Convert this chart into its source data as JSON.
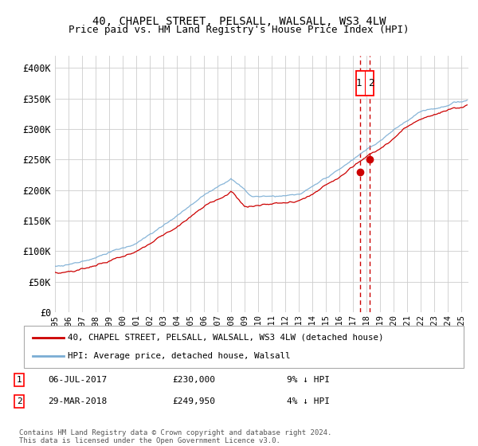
{
  "title": "40, CHAPEL STREET, PELSALL, WALSALL, WS3 4LW",
  "subtitle": "Price paid vs. HM Land Registry's House Price Index (HPI)",
  "ylabel_ticks": [
    "£0",
    "£50K",
    "£100K",
    "£150K",
    "£200K",
    "£250K",
    "£300K",
    "£350K",
    "£400K"
  ],
  "ytick_values": [
    0,
    50000,
    100000,
    150000,
    200000,
    250000,
    300000,
    350000,
    400000
  ],
  "ylim": [
    0,
    420000
  ],
  "xlim_start": 1995.0,
  "xlim_end": 2025.5,
  "xtick_years": [
    1995,
    1996,
    1997,
    1998,
    1999,
    2000,
    2001,
    2002,
    2003,
    2004,
    2005,
    2006,
    2007,
    2008,
    2009,
    2010,
    2011,
    2012,
    2013,
    2014,
    2015,
    2016,
    2017,
    2018,
    2019,
    2020,
    2021,
    2022,
    2023,
    2024,
    2025
  ],
  "legend_label_red": "40, CHAPEL STREET, PELSALL, WALSALL, WS3 4LW (detached house)",
  "legend_label_blue": "HPI: Average price, detached house, Walsall",
  "transaction1_date": "06-JUL-2017",
  "transaction1_price": "£230,000",
  "transaction1_hpi": "9% ↓ HPI",
  "transaction1_year": 2017.51,
  "transaction1_price_val": 230000,
  "transaction2_date": "29-MAR-2018",
  "transaction2_price": "£249,950",
  "transaction2_hpi": "4% ↓ HPI",
  "transaction2_year": 2018.23,
  "transaction2_price_val": 249950,
  "footer": "Contains HM Land Registry data © Crown copyright and database right 2024.\nThis data is licensed under the Open Government Licence v3.0.",
  "red_color": "#cc0000",
  "blue_color": "#7aadd4",
  "dashed_color": "#cc0000",
  "grid_color": "#cccccc",
  "background_color": "#ffffff"
}
